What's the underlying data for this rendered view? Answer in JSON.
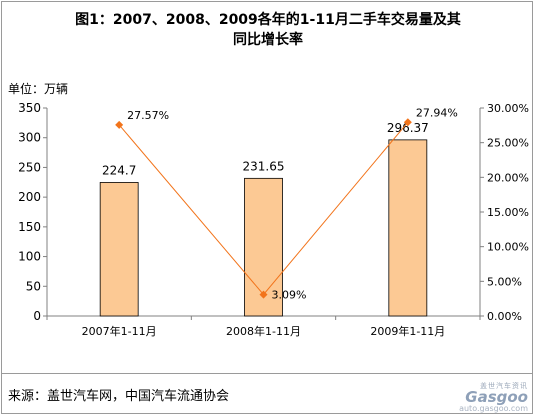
{
  "title_line1": "图1：2007、2008、2009各年的1-11月二手车交易量及其",
  "title_line2": "同比增长率",
  "unit_label": "单位：万辆",
  "source": "来源：盖世汽车网，中国汽车流通协会",
  "watermark": {
    "small": "盖世汽车资讯",
    "brand": "Gasgoo",
    "url": "auto.gasgoo.com"
  },
  "chart_data": {
    "type": "bar",
    "categories": [
      "2007年1-11月",
      "2008年1-11月",
      "2009年1-11月"
    ],
    "series": [
      {
        "values": [
          224.7,
          231.65,
          296.37
        ],
        "value_labels": [
          "224.7",
          "231.65",
          "296.37"
        ],
        "kind": "bar",
        "axis": "left",
        "color": "#fcc994"
      },
      {
        "values": [
          27.57,
          3.09,
          27.94
        ],
        "value_labels": [
          "27.57%",
          "3.09%",
          "27.94%"
        ],
        "kind": "line",
        "axis": "right",
        "color": "#f2741b"
      }
    ],
    "ylim": [
      0,
      350
    ],
    "yticks": [
      0,
      50,
      100,
      150,
      200,
      250,
      300,
      350
    ],
    "y2lim": [
      0,
      30
    ],
    "y2ticks_labels": [
      "0.00%",
      "5.00%",
      "10.00%",
      "15.00%",
      "20.00%",
      "25.00%",
      "30.00%"
    ],
    "grid": false,
    "legend": "none"
  }
}
